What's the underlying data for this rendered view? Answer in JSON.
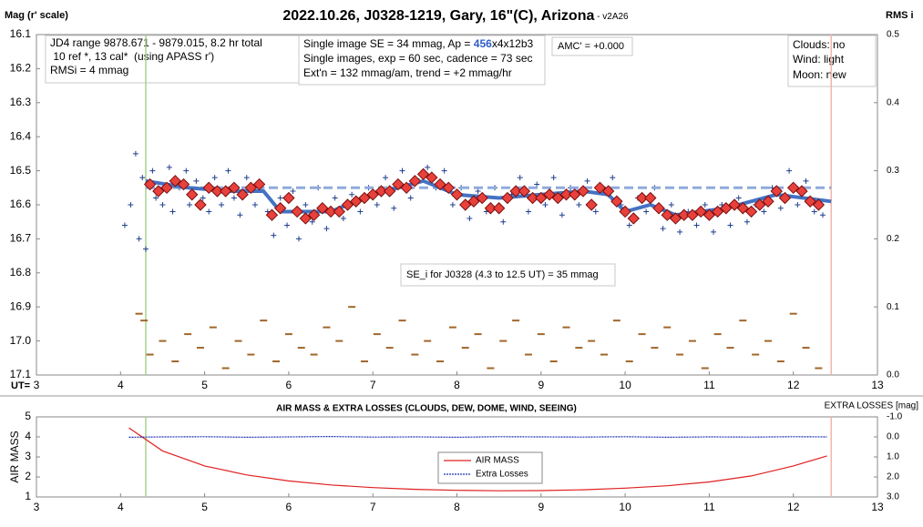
{
  "chart_data": [
    {
      "type": "scatter",
      "title": "2022.10.26, J0328-1219, Gary, 16\"(C), Arizona",
      "subtitle": " - v2A26",
      "y_label": "Mag (r' scale)",
      "y2_label": "RMS i",
      "x_label": "UT=",
      "xlim": [
        3,
        13
      ],
      "xticks": [
        3,
        4,
        5,
        6,
        7,
        8,
        9,
        10,
        11,
        12,
        13
      ],
      "ylim": [
        17.1,
        16.1
      ],
      "yticks": [
        16.1,
        16.2,
        16.3,
        16.4,
        16.5,
        16.6,
        16.7,
        16.8,
        16.9,
        {
          "value": 17,
          "label": "17.0"
        },
        17.1
      ],
      "y2lim": [
        0,
        0.5
      ],
      "y2ticks": [
        {
          "value": 0,
          "label": "0.0"
        },
        0.1,
        0.2,
        0.3,
        0.4,
        0.5
      ],
      "vlines": [
        {
          "x": 4.3,
          "color": "#a9d18e"
        },
        {
          "x": 12.45,
          "color": "#f4b4aa"
        }
      ],
      "annotations": [
        {
          "lines": [
            "JD4 range 9878.671 - 9879.015, 8.2 hr total",
            " 10 ref *, 13 cal*  (using APASS r')",
            "RMSi = 4 mmag"
          ]
        },
        {
          "lines": [
            [
              "Single image SE = 34 mmag, Ap = ",
              "456",
              "x4x12b3"
            ],
            "Single images, exp = 60 sec, cadence = 73 sec",
            "Ext'n = 132 mmag/am, trend = +2 mmag/hr"
          ]
        },
        {
          "lines": [
            "AMC' = +0.000"
          ]
        },
        {
          "lines": [
            "Clouds: no",
            "Wind: light",
            "Moon: new"
          ]
        },
        {
          "lines": [
            "SE_i for J0328 (4.3 to 12.5 UT) = 35 mmag"
          ]
        }
      ],
      "series": [
        {
          "style": "cross",
          "color": "#1f3f8f",
          "x": [
            4.05,
            4.12,
            4.18,
            4.22,
            4.26,
            4.3,
            4.38,
            4.42,
            4.5,
            4.58,
            4.62,
            4.7,
            4.78,
            4.82,
            4.9,
            4.98,
            5.05,
            5.12,
            5.2,
            5.28,
            5.35,
            5.42,
            5.5,
            5.6,
            5.68,
            5.75,
            5.82,
            5.9,
            5.98,
            6.05,
            6.12,
            6.2,
            6.28,
            6.35,
            6.45,
            6.55,
            6.65,
            6.75,
            6.85,
            6.95,
            7.05,
            7.15,
            7.25,
            7.35,
            7.45,
            7.55,
            7.65,
            7.75,
            7.85,
            7.95,
            8.05,
            8.15,
            8.25,
            8.35,
            8.45,
            8.55,
            8.65,
            8.75,
            8.85,
            8.95,
            9.05,
            9.15,
            9.25,
            9.35,
            9.45,
            9.55,
            9.65,
            9.75,
            9.85,
            9.95,
            10.05,
            10.15,
            10.25,
            10.35,
            10.45,
            10.55,
            10.65,
            10.75,
            10.85,
            10.95,
            11.05,
            11.15,
            11.25,
            11.35,
            11.45,
            11.55,
            11.65,
            11.75,
            11.85,
            11.95,
            12.05,
            12.15,
            12.25,
            12.35
          ],
          "values": [
            16.66,
            16.6,
            16.45,
            16.7,
            16.52,
            16.73,
            16.5,
            16.58,
            16.6,
            16.49,
            16.62,
            16.55,
            16.5,
            16.6,
            16.53,
            16.58,
            16.62,
            16.52,
            16.6,
            16.5,
            16.58,
            16.63,
            16.52,
            16.6,
            16.55,
            16.62,
            16.69,
            16.58,
            16.66,
            16.56,
            16.7,
            16.6,
            16.65,
            16.55,
            16.67,
            16.58,
            16.64,
            16.57,
            16.62,
            16.55,
            16.6,
            16.52,
            16.61,
            16.5,
            16.58,
            16.53,
            16.49,
            16.55,
            16.5,
            16.6,
            16.55,
            16.64,
            16.56,
            16.62,
            16.55,
            16.65,
            16.57,
            16.52,
            16.62,
            16.54,
            16.6,
            16.52,
            16.63,
            16.55,
            16.6,
            16.53,
            16.62,
            16.56,
            16.52,
            16.6,
            16.66,
            16.58,
            16.62,
            16.55,
            16.67,
            16.6,
            16.68,
            16.62,
            16.66,
            16.6,
            16.68,
            16.6,
            16.66,
            16.58,
            16.65,
            16.6,
            16.62,
            16.55,
            16.61,
            16.5,
            16.6,
            16.53,
            16.62,
            16.63
          ]
        },
        {
          "style": "dashed",
          "color": "#8faadc",
          "x": [
            4.3,
            12.45
          ],
          "values": [
            16.55,
            16.55
          ]
        },
        {
          "style": "line",
          "color": "#4472c4",
          "x": [
            4.3,
            4.8,
            5.3,
            5.7,
            5.9,
            6.5,
            7.0,
            7.6,
            8.0,
            8.5,
            9.0,
            9.5,
            9.8,
            10.0,
            10.3,
            10.6,
            11.2,
            11.8,
            12.45
          ],
          "values": [
            16.53,
            16.55,
            16.56,
            16.56,
            16.62,
            16.62,
            16.57,
            16.53,
            16.57,
            16.58,
            16.57,
            16.56,
            16.57,
            16.62,
            16.6,
            16.63,
            16.61,
            16.57,
            16.59
          ]
        },
        {
          "style": "diamond",
          "color": "#e8413c",
          "x": [
            4.35,
            4.45,
            4.55,
            4.65,
            4.75,
            4.85,
            4.95,
            5.05,
            5.15,
            5.25,
            5.35,
            5.45,
            5.55,
            5.65,
            5.8,
            5.9,
            6.0,
            6.1,
            6.2,
            6.3,
            6.4,
            6.5,
            6.6,
            6.7,
            6.8,
            6.9,
            7.0,
            7.1,
            7.2,
            7.3,
            7.4,
            7.5,
            7.6,
            7.7,
            7.8,
            7.9,
            8.0,
            8.1,
            8.2,
            8.3,
            8.4,
            8.5,
            8.6,
            8.7,
            8.8,
            8.9,
            9.0,
            9.1,
            9.2,
            9.3,
            9.4,
            9.5,
            9.6,
            9.7,
            9.8,
            9.9,
            10.0,
            10.1,
            10.2,
            10.3,
            10.4,
            10.5,
            10.6,
            10.7,
            10.8,
            10.9,
            11.0,
            11.1,
            11.2,
            11.3,
            11.4,
            11.5,
            11.6,
            11.7,
            11.8,
            11.9,
            12.0,
            12.1,
            12.2,
            12.3
          ],
          "values": [
            16.54,
            16.56,
            16.55,
            16.53,
            16.54,
            16.57,
            16.6,
            16.55,
            16.56,
            16.56,
            16.55,
            16.57,
            16.55,
            16.54,
            16.63,
            16.61,
            16.58,
            16.62,
            16.64,
            16.63,
            16.61,
            16.62,
            16.62,
            16.6,
            16.59,
            16.58,
            16.57,
            16.56,
            16.56,
            16.54,
            16.55,
            16.53,
            16.51,
            16.52,
            16.54,
            16.55,
            16.57,
            16.6,
            16.59,
            16.58,
            16.61,
            16.61,
            16.58,
            16.56,
            16.56,
            16.58,
            16.58,
            16.57,
            16.58,
            16.57,
            16.57,
            16.56,
            16.6,
            16.55,
            16.56,
            16.59,
            16.62,
            16.64,
            16.58,
            16.58,
            16.61,
            16.63,
            16.64,
            16.63,
            16.63,
            16.62,
            16.63,
            16.62,
            16.61,
            16.6,
            16.61,
            16.62,
            16.6,
            16.59,
            16.56,
            16.58,
            16.55,
            16.56,
            16.59,
            16.6
          ]
        },
        {
          "style": "dash",
          "color": "#a0662b",
          "axis": "y2",
          "x": [
            4.22,
            4.28,
            4.35,
            4.5,
            4.65,
            4.8,
            4.95,
            5.1,
            5.25,
            5.4,
            5.55,
            5.7,
            5.85,
            6.0,
            6.15,
            6.3,
            6.45,
            6.6,
            6.75,
            6.9,
            7.05,
            7.2,
            7.35,
            7.5,
            7.65,
            7.8,
            7.95,
            8.1,
            8.25,
            8.4,
            8.55,
            8.7,
            8.85,
            9.0,
            9.15,
            9.3,
            9.45,
            9.6,
            9.75,
            9.9,
            10.05,
            10.2,
            10.35,
            10.5,
            10.65,
            10.8,
            10.95,
            11.1,
            11.25,
            11.4,
            11.55,
            11.7,
            11.85,
            12.0,
            12.15,
            12.3
          ],
          "values": [
            0.09,
            0.08,
            0.03,
            0.05,
            0.02,
            0.06,
            0.04,
            0.07,
            0.01,
            0.05,
            0.03,
            0.08,
            0.02,
            0.06,
            0.04,
            0.03,
            0.07,
            0.05,
            0.1,
            0.02,
            0.06,
            0.04,
            0.08,
            0.03,
            0.05,
            0.02,
            0.07,
            0.04,
            0.06,
            0.01,
            0.05,
            0.08,
            0.03,
            0.06,
            0.02,
            0.07,
            0.04,
            0.05,
            0.03,
            0.08,
            0.02,
            0.06,
            0.04,
            0.07,
            0.03,
            0.05,
            0.01,
            0.06,
            0.04,
            0.08,
            0.03,
            0.05,
            0.02,
            0.09,
            0.04,
            0.01
          ]
        }
      ]
    },
    {
      "type": "line",
      "title": "AIR MASS & EXTRA LOSSES (CLOUDS, DEW, DOME, WIND, SEEING)",
      "y_label": "AIR MASS",
      "y2_label": "EXTRA LOSSES [mag]",
      "xlim": [
        3,
        13
      ],
      "xticks": [
        3,
        4,
        5,
        6,
        7,
        8,
        9,
        10,
        11,
        12,
        13
      ],
      "ylim": [
        1,
        5
      ],
      "yticks": [
        1,
        2,
        3,
        4,
        5
      ],
      "y2lim": [
        3,
        -1
      ],
      "y2ticks": [
        {
          "value": -1,
          "label": "-1.0"
        },
        {
          "value": 0,
          "label": "0.0"
        },
        {
          "value": 1,
          "label": "1.0"
        },
        {
          "value": 2,
          "label": "2.0"
        },
        {
          "value": 3,
          "label": "3.0"
        }
      ],
      "vlines": [
        {
          "x": 4.3,
          "color": "#a9d18e"
        },
        {
          "x": 12.45,
          "color": "#f4b4aa"
        }
      ],
      "series": [
        {
          "name": "AIR MASS",
          "style": "line",
          "color": "#e02020",
          "x": [
            4.1,
            4.5,
            5,
            5.5,
            6,
            6.5,
            7,
            7.5,
            8,
            8.5,
            9,
            9.5,
            10,
            10.5,
            11,
            11.5,
            12,
            12.4
          ],
          "values": [
            4.45,
            3.3,
            2.55,
            2.1,
            1.8,
            1.6,
            1.47,
            1.38,
            1.33,
            1.31,
            1.32,
            1.36,
            1.44,
            1.56,
            1.75,
            2.05,
            2.55,
            3.05
          ]
        },
        {
          "name": "Extra Losses",
          "style": "dotted",
          "color": "#1a2fb0",
          "axis": "y2",
          "x": [
            4.1,
            4.5,
            5,
            5.5,
            6,
            6.5,
            7,
            7.5,
            8,
            8.5,
            9,
            9.5,
            10,
            10.5,
            11,
            11.5,
            12,
            12.4
          ],
          "values": [
            0.02,
            0,
            -0.01,
            0.02,
            0,
            -0.02,
            0.01,
            0,
            0.02,
            -0.01,
            0,
            0.01,
            -0.01,
            0.02,
            0,
            0.01,
            -0.01,
            0
          ]
        }
      ]
    }
  ]
}
